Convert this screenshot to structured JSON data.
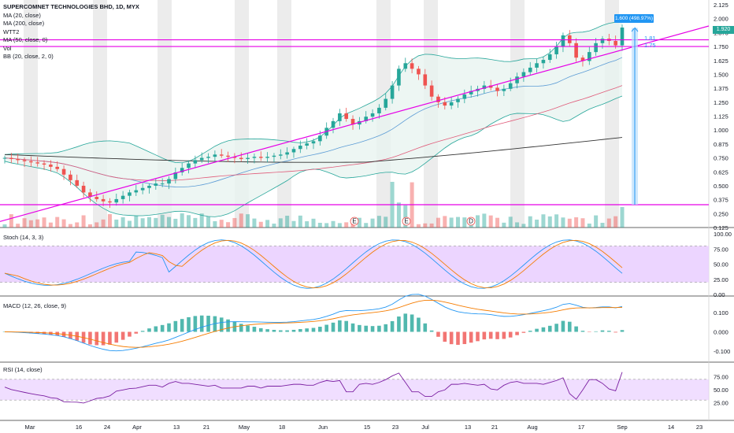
{
  "legend": {
    "title": "SUPERCOMNET TECHNOLOGIES BHD, 1D, MYX",
    "items": [
      "MA (20, close)",
      "MA (200, close)",
      "WTT2",
      "MA (50, close, 0)",
      "Vol",
      "BB (20, close, 2, 0)"
    ]
  },
  "colors": {
    "up": "#26a69a",
    "down": "#ef5350",
    "magenta": "#e600e6",
    "price_label": "#2196f3",
    "ma20": "#5b9bd5",
    "ma50": "#e05c7a",
    "ma200": "#333333",
    "band_fill": "#e8f4f0",
    "stoch_k": "#2196f3",
    "stoch_d": "#f57c00",
    "macd": "#2196f3",
    "signal": "#f57c00",
    "rsi": "#7b1fa2",
    "zone_fill": "#ead0ff"
  },
  "price_axis": {
    "ticks": [
      "2.125",
      "2.000",
      "1.875",
      "1.750",
      "1.625",
      "1.500",
      "1.375",
      "1.250",
      "1.125",
      "1.000",
      "0.875",
      "0.750",
      "0.625",
      "0.500",
      "0.375",
      "0.250",
      "0.125"
    ],
    "last_price": "1.920"
  },
  "measure": {
    "label": "1.600 (498.97%) 320",
    "level_hi": "1.81",
    "level_lo": "1.75"
  },
  "events": [
    "E",
    "E",
    "D"
  ],
  "panels": {
    "stoch": {
      "title": "Stoch (14, 3, 3)",
      "ticks": [
        "100.00",
        "75.00",
        "50.00",
        "25.00",
        "0.00"
      ]
    },
    "macd": {
      "title": "MACD (12, 26, close, 9)",
      "ticks": [
        "0.100",
        "0.000",
        "-0.100"
      ]
    },
    "rsi": {
      "title": "RSI (14, close)",
      "ticks": [
        "75.00",
        "50.00",
        "25.00"
      ]
    }
  },
  "time_axis": [
    "Mar",
    "16",
    "24",
    "Apr",
    "13",
    "21",
    "May",
    "18",
    "Jun",
    "15",
    "23",
    "Jul",
    "13",
    "21",
    "Aug",
    "17",
    "Sep",
    "14",
    "23"
  ],
  "chart_data": {
    "type": "candlestick",
    "title": "SUPERCOMNET TECHNOLOGIES BHD, 1D, MYX",
    "ylim": [
      0.125,
      2.125
    ],
    "support_levels": [
      1.81,
      1.75,
      0.33
    ],
    "trendline": [
      {
        "x": "Mar",
        "y": 0.25
      },
      {
        "x": "Sep",
        "y": 1.8
      }
    ],
    "candles_close_approx": [
      0.75,
      0.74,
      0.73,
      0.72,
      0.71,
      0.7,
      0.69,
      0.67,
      0.65,
      0.6,
      0.55,
      0.5,
      0.44,
      0.4,
      0.38,
      0.36,
      0.35,
      0.38,
      0.41,
      0.44,
      0.46,
      0.48,
      0.5,
      0.52,
      0.52,
      0.56,
      0.62,
      0.66,
      0.7,
      0.73,
      0.75,
      0.76,
      0.78,
      0.77,
      0.76,
      0.75,
      0.74,
      0.75,
      0.76,
      0.75,
      0.76,
      0.77,
      0.78,
      0.8,
      0.83,
      0.86,
      0.88,
      0.9,
      0.95,
      1.02,
      1.08,
      1.15,
      1.1,
      1.05,
      1.08,
      1.12,
      1.15,
      1.2,
      1.28,
      1.4,
      1.55,
      1.6,
      1.55,
      1.5,
      1.4,
      1.3,
      1.25,
      1.22,
      1.25,
      1.28,
      1.32,
      1.35,
      1.37,
      1.4,
      1.38,
      1.35,
      1.37,
      1.42,
      1.48,
      1.52,
      1.56,
      1.6,
      1.63,
      1.68,
      1.75,
      1.85,
      1.78,
      1.65,
      1.62,
      1.7,
      1.78,
      1.82,
      1.8,
      1.76,
      1.92
    ]
  }
}
